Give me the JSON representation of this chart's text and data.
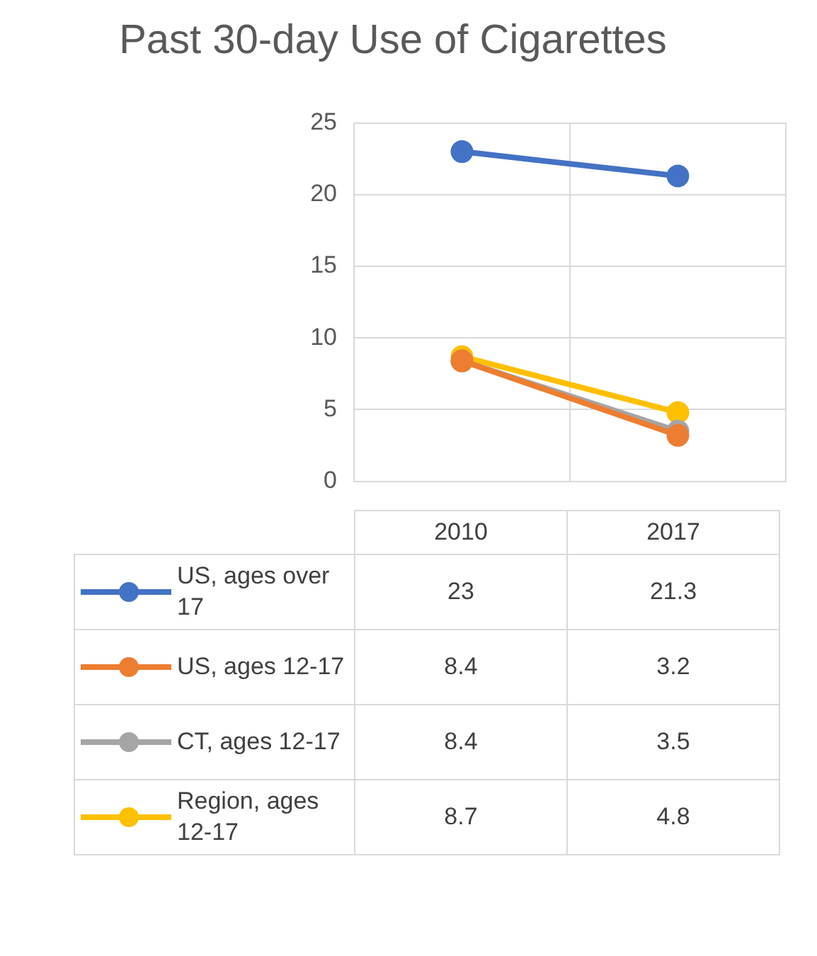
{
  "chart_data": {
    "type": "line",
    "title": "Past 30-day Use of Cigarettes",
    "categories": [
      "2010",
      "2017"
    ],
    "series": [
      {
        "name": "US, ages over 17",
        "color": "#4472c4",
        "values": [
          23,
          21.3
        ]
      },
      {
        "name": "US, ages 12-17",
        "color": "#ed7d31",
        "values": [
          8.4,
          3.2
        ]
      },
      {
        "name": "CT, ages 12-17",
        "color": "#a5a5a5",
        "values": [
          8.4,
          3.5
        ]
      },
      {
        "name": "Region, ages 12-17",
        "color": "#ffc000",
        "values": [
          8.7,
          4.8
        ]
      }
    ],
    "ylim": [
      0,
      25
    ],
    "yticks": [
      0,
      5,
      10,
      15,
      20,
      25
    ],
    "grid": "y",
    "legend": "bottom",
    "marker": "circle",
    "line_style": "solid",
    "data_labels": true
  }
}
